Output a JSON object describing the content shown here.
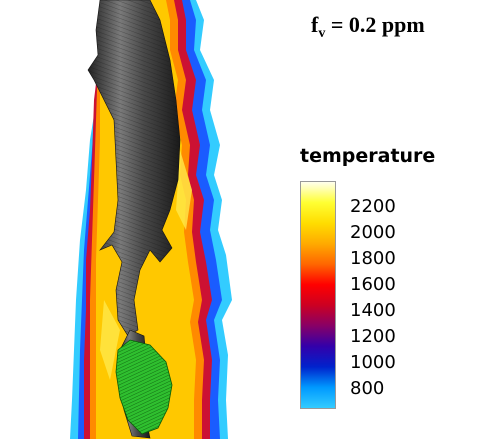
{
  "annotation": {
    "symbol": "f",
    "subscript": "v",
    "text": " = 0.2 ppm"
  },
  "legend": {
    "title": "temperature",
    "ticks": [
      "2200",
      "2000",
      "1800",
      "1600",
      "1400",
      "1200",
      "1000",
      "800"
    ],
    "range": [
      650,
      2400
    ],
    "colors": [
      "#33ccff",
      "#0099ff",
      "#0022cc",
      "#3300aa",
      "#880066",
      "#cc0022",
      "#ff0000",
      "#ff6600",
      "#ffaa00",
      "#ffdd00",
      "#ffff33",
      "#ffffee"
    ]
  }
}
